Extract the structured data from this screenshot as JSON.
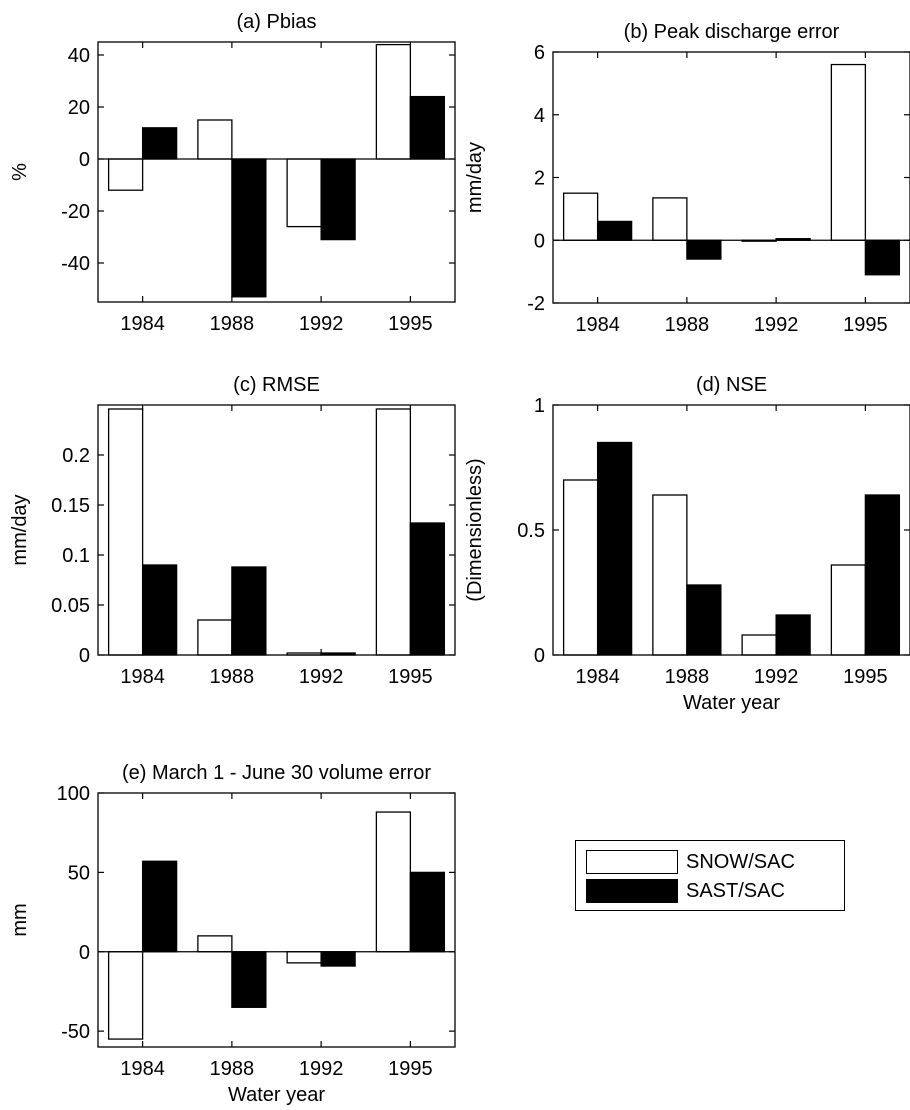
{
  "chart_data": [
    {
      "type": "bar",
      "title": "(a) Pbias",
      "xlabel": "",
      "ylabel": "%",
      "categories": [
        "1984",
        "1988",
        "1992",
        "1995"
      ],
      "ylim": [
        -55,
        45
      ],
      "yticks": [
        -40,
        -20,
        0,
        20,
        40
      ],
      "ytick_labels": [
        "-40",
        "-20",
        "0",
        "20",
        "40"
      ],
      "series": [
        {
          "name": "SNOW/SAC",
          "values": [
            -12,
            15,
            -26,
            44
          ]
        },
        {
          "name": "SAST/SAC",
          "values": [
            12,
            -53,
            -31,
            24
          ]
        }
      ]
    },
    {
      "type": "bar",
      "title": "(b) Peak discharge error",
      "xlabel": "",
      "ylabel": "mm/day",
      "categories": [
        "1984",
        "1988",
        "1992",
        "1995"
      ],
      "ylim": [
        -2,
        6
      ],
      "yticks": [
        -2,
        0,
        2,
        4,
        6
      ],
      "ytick_labels": [
        "-2",
        "0",
        "2",
        "4",
        "6"
      ],
      "series": [
        {
          "name": "SNOW/SAC",
          "values": [
            1.5,
            1.35,
            -0.03,
            5.6
          ]
        },
        {
          "name": "SAST/SAC",
          "values": [
            0.6,
            -0.6,
            0.05,
            -1.1
          ]
        }
      ]
    },
    {
      "type": "bar",
      "title": "(c) RMSE",
      "xlabel": "",
      "ylabel": "mm/day",
      "categories": [
        "1984",
        "1988",
        "1992",
        "1995"
      ],
      "ylim": [
        0,
        0.25
      ],
      "yticks": [
        0,
        0.05,
        0.1,
        0.15,
        0.2
      ],
      "ytick_labels": [
        "0",
        "0.05",
        "0.1",
        "0.15",
        "0.2"
      ],
      "series": [
        {
          "name": "SNOW/SAC",
          "values": [
            0.246,
            0.035,
            0.002,
            0.246
          ]
        },
        {
          "name": "SAST/SAC",
          "values": [
            0.09,
            0.088,
            0.002,
            0.132
          ]
        }
      ]
    },
    {
      "type": "bar",
      "title": "(d) NSE",
      "xlabel": "Water year",
      "ylabel": "(Dimensionless)",
      "categories": [
        "1984",
        "1988",
        "1992",
        "1995"
      ],
      "ylim": [
        0,
        1
      ],
      "yticks": [
        0,
        0.5,
        1
      ],
      "ytick_labels": [
        "0",
        "0.5",
        "1"
      ],
      "series": [
        {
          "name": "SNOW/SAC",
          "values": [
            0.7,
            0.64,
            0.08,
            0.36
          ]
        },
        {
          "name": "SAST/SAC",
          "values": [
            0.85,
            0.28,
            0.16,
            0.64
          ]
        }
      ]
    },
    {
      "type": "bar",
      "title": "(e) March 1 - June 30 volume error",
      "xlabel": "Water year",
      "ylabel": "mm",
      "categories": [
        "1984",
        "1988",
        "1992",
        "1995"
      ],
      "ylim": [
        -60,
        100
      ],
      "yticks": [
        -50,
        0,
        50,
        100
      ],
      "ytick_labels": [
        "-50",
        "0",
        "50",
        "100"
      ],
      "series": [
        {
          "name": "SNOW/SAC",
          "values": [
            -55,
            10,
            -7,
            88
          ]
        },
        {
          "name": "SAST/SAC",
          "values": [
            57,
            -35,
            -9,
            50
          ]
        }
      ]
    }
  ],
  "legend": {
    "position": "right of panel (e)",
    "entries": [
      {
        "label": "SNOW/SAC",
        "color": "#ffffff"
      },
      {
        "label": "SAST/SAC",
        "color": "#000000"
      }
    ]
  },
  "colors": {
    "series_fills": [
      "#ffffff",
      "#000000"
    ],
    "stroke": "#000000"
  }
}
